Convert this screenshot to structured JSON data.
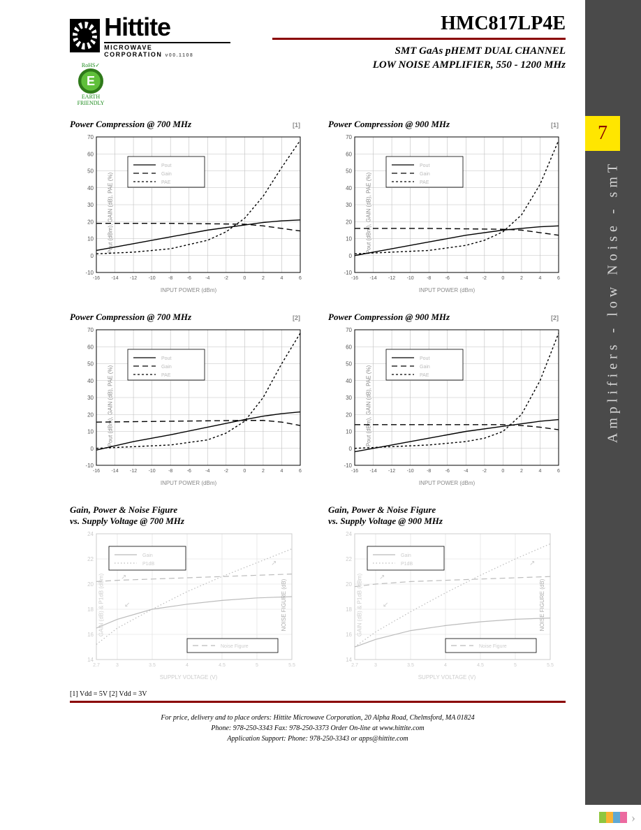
{
  "header": {
    "company_big": "Hittite",
    "company_sub": "MICROWAVE CORPORATION",
    "version": "v00.1108",
    "rohs_top": "RoHS✓",
    "rohs_badge": "E",
    "rohs_bottom": "EARTH FRIENDLY",
    "part_number": "HMC817LP4E",
    "subtitle_line1": "SMT GaAs pHEMT DUAL CHANNEL",
    "subtitle_line2": "LOW NOISE AMPLIFIER, 550 - 1200 MHz"
  },
  "sidebar": {
    "tab_number": "7",
    "vertical_text": "Amplifiers - low Noise - smT"
  },
  "colors": {
    "accent_rule": "#8a0000",
    "tab_bg": "#ffe600",
    "strip_bg": "#4a4a4a",
    "grid": "#bfbfbf",
    "axis": "#000000",
    "series": "#000000",
    "faint": "#dddddd",
    "faint_text": "#bbbbbb",
    "corner_colors": [
      "#8fc63f",
      "#f9b233",
      "#5fa8d3",
      "#ec6aa0"
    ]
  },
  "footnote": "[1] Vdd = 5V  [2] Vdd = 3V",
  "footer": {
    "l1": "For price, delivery and to place orders: Hittite Microwave Corporation, 20 Alpha Road, Chelmsford, MA 01824",
    "l2": "Phone: 978-250-3343    Fax: 978-250-3373    Order On-line at www.hittite.com",
    "l3": "Application Support: Phone: 978-250-3343  or  apps@hittite.com"
  },
  "chart_common_pc": {
    "xlabel": "INPUT POWER (dBm)",
    "ylabel": "Pout (dBm), GAIN (dB), PAE (%)",
    "x_ticks": [
      -16,
      -14,
      -12,
      -10,
      -8,
      -6,
      -4,
      -2,
      0,
      2,
      4,
      6
    ],
    "xlim": [
      -16,
      6
    ],
    "ylim": [
      -10,
      70
    ],
    "y_ticks": [
      -10,
      0,
      10,
      20,
      30,
      40,
      50,
      60,
      70
    ],
    "legend": [
      "Pout",
      "Gain",
      "PAE"
    ],
    "plot_bg": "#ffffff",
    "grid_color": "#bfbfbf",
    "line_width": 1.4,
    "title_fontsize": 13,
    "tick_fontsize": 8,
    "label_fontsize": 8
  },
  "chart_common_gpn": {
    "xlabel": "SUPPLY VOLTAGE (V)",
    "ylabel_left": "GAIN (dB) & P1dB (dBm)",
    "ylabel_right": "NOISE FIGURE (dB)",
    "x_ticks": [
      2.7,
      3.0,
      3.5,
      4.0,
      4.5,
      5.0,
      5.5
    ],
    "xlim": [
      2.7,
      5.5
    ],
    "ylim_left": [
      14,
      24
    ],
    "y_ticks_left": [
      14,
      16,
      18,
      20,
      22,
      24
    ],
    "ylim_right": [
      0.0,
      1.0
    ],
    "legend_top": [
      "Gain",
      "P1dB"
    ],
    "legend_bottom": [
      "Noise Figure"
    ],
    "faint_color": "#dddddd",
    "title_fontsize": 13
  },
  "charts": [
    {
      "title": "Power Compression @ 700 MHz",
      "note": "[1]",
      "type": "power_compression",
      "series": {
        "pout": {
          "style": "solid",
          "x": [
            -16,
            -12,
            -8,
            -4,
            0,
            2,
            4,
            6
          ],
          "y": [
            3,
            7,
            11,
            15,
            18,
            19.5,
            20.5,
            21
          ]
        },
        "gain": {
          "style": "long-dash",
          "x": [
            -16,
            -8,
            0,
            2,
            4,
            6
          ],
          "y": [
            19,
            19,
            18.5,
            17.5,
            16,
            14.5
          ]
        },
        "pae": {
          "style": "short-dash",
          "x": [
            -16,
            -12,
            -8,
            -4,
            -2,
            0,
            2,
            4,
            6
          ],
          "y": [
            1,
            2,
            4,
            9,
            14,
            22,
            35,
            52,
            68
          ]
        }
      }
    },
    {
      "title": "Power Compression @ 900 MHz",
      "note": "[1]",
      "type": "power_compression",
      "series": {
        "pout": {
          "style": "solid",
          "x": [
            -16,
            -12,
            -8,
            -4,
            0,
            2,
            4,
            6
          ],
          "y": [
            0,
            4,
            8,
            12,
            15,
            16,
            17,
            17.5
          ]
        },
        "gain": {
          "style": "long-dash",
          "x": [
            -16,
            -8,
            0,
            2,
            4,
            6
          ],
          "y": [
            16,
            16,
            15.5,
            15,
            13.5,
            12
          ]
        },
        "pae": {
          "style": "short-dash",
          "x": [
            -16,
            -12,
            -8,
            -4,
            -2,
            0,
            2,
            4,
            6
          ],
          "y": [
            1,
            2,
            3,
            6,
            9,
            14,
            24,
            42,
            68
          ]
        }
      }
    },
    {
      "title": "Power Compression @ 700 MHz",
      "note": "[2]",
      "type": "power_compression",
      "series": {
        "pout": {
          "style": "solid",
          "x": [
            -16,
            -12,
            -8,
            -4,
            0,
            2,
            4,
            6
          ],
          "y": [
            -1,
            4,
            8,
            12.5,
            17,
            19,
            20.5,
            21.5
          ]
        },
        "gain": {
          "style": "long-dash",
          "x": [
            -16,
            -8,
            0,
            2,
            4,
            6
          ],
          "y": [
            15.5,
            16,
            16.5,
            16.5,
            15.5,
            13.5
          ]
        },
        "pae": {
          "style": "short-dash",
          "x": [
            -16,
            -12,
            -8,
            -4,
            -2,
            0,
            2,
            4,
            6
          ],
          "y": [
            0,
            1,
            2,
            5,
            9,
            16,
            30,
            50,
            68
          ]
        }
      }
    },
    {
      "title": "Power Compression @ 900 MHz",
      "note": "[2]",
      "type": "power_compression",
      "series": {
        "pout": {
          "style": "solid",
          "x": [
            -16,
            -12,
            -8,
            -4,
            0,
            2,
            4,
            6
          ],
          "y": [
            -2,
            2,
            6,
            10,
            13,
            14.5,
            16,
            17
          ]
        },
        "gain": {
          "style": "long-dash",
          "x": [
            -16,
            -8,
            0,
            2,
            4,
            6
          ],
          "y": [
            14,
            14,
            14,
            13.5,
            12.5,
            11
          ]
        },
        "pae": {
          "style": "short-dash",
          "x": [
            -16,
            -12,
            -8,
            -4,
            -2,
            0,
            2,
            4,
            6
          ],
          "y": [
            0,
            1,
            2,
            4,
            6,
            10,
            20,
            40,
            68
          ]
        }
      }
    },
    {
      "title_l1": "Gain, Power & Noise Figure",
      "title_l2": "vs. Supply Voltage @ 700 MHz",
      "type": "gain_power_nf",
      "series": {
        "gain": {
          "style": "solid",
          "x": [
            2.7,
            3.0,
            3.5,
            4.0,
            4.5,
            5.0,
            5.5
          ],
          "y": [
            16.5,
            17.2,
            18.0,
            18.4,
            18.7,
            18.9,
            19.0
          ]
        },
        "p1db": {
          "style": "dotted",
          "x": [
            2.7,
            3.0,
            3.5,
            4.0,
            4.5,
            5.0,
            5.5
          ],
          "y": [
            15.2,
            16.5,
            18.0,
            19.4,
            20.6,
            21.7,
            22.8
          ]
        },
        "nf": {
          "style": "long-dash",
          "x": [
            2.7,
            3.0,
            3.5,
            4.0,
            4.5,
            5.0,
            5.5
          ],
          "y": [
            20.2,
            20.3,
            20.4,
            20.5,
            20.6,
            20.7,
            20.8
          ]
        }
      }
    },
    {
      "title_l1": "Gain, Power & Noise Figure",
      "title_l2": "vs. Supply Voltage @ 900 MHz",
      "type": "gain_power_nf",
      "series": {
        "gain": {
          "style": "solid",
          "x": [
            2.7,
            3.0,
            3.5,
            4.0,
            4.5,
            5.0,
            5.5
          ],
          "y": [
            15.0,
            15.6,
            16.3,
            16.7,
            17.0,
            17.2,
            17.3
          ]
        },
        "p1db": {
          "style": "dotted",
          "x": [
            2.7,
            3.0,
            3.5,
            4.0,
            4.5,
            5.0,
            5.5
          ],
          "y": [
            15.0,
            16.2,
            17.8,
            19.3,
            20.7,
            22.0,
            23.2
          ]
        },
        "nf": {
          "style": "long-dash",
          "x": [
            2.7,
            3.0,
            3.5,
            4.0,
            4.5,
            5.0,
            5.5
          ],
          "y": [
            19.8,
            20.0,
            20.2,
            20.3,
            20.4,
            20.5,
            20.6
          ]
        }
      }
    }
  ]
}
